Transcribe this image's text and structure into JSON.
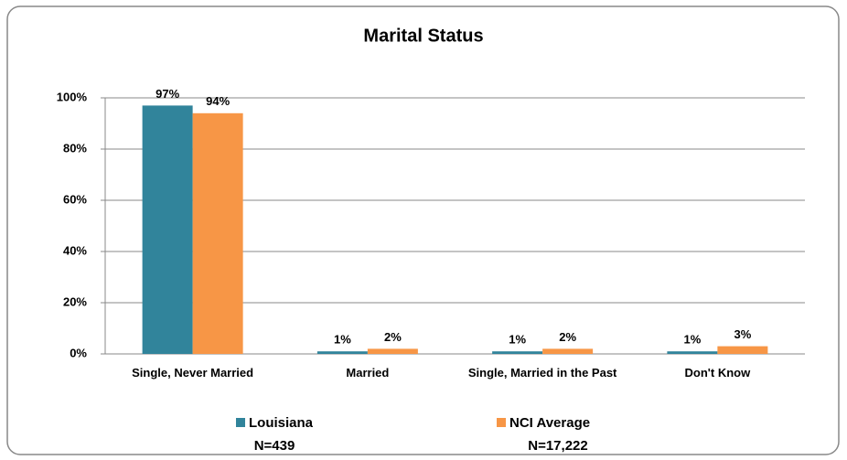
{
  "chart_data": {
    "type": "bar",
    "title": "Marital Status",
    "categories": [
      "Single, Never Married",
      "Married",
      "Single, Married in the Past",
      "Don't Know"
    ],
    "series": [
      {
        "name": "Louisiana",
        "n_label": "N=439",
        "color": "#31849b",
        "values": [
          97,
          1,
          1,
          1
        ],
        "value_labels": [
          "97%",
          "1%",
          "1%",
          "1%"
        ]
      },
      {
        "name": "NCI Average",
        "n_label": "N=17,222",
        "color": "#f79646",
        "values": [
          94,
          2,
          2,
          3
        ],
        "value_labels": [
          "94%",
          "2%",
          "2%",
          "3%"
        ]
      }
    ],
    "ylim": [
      0,
      100
    ],
    "yticks": [
      {
        "value": 0,
        "label": "0%"
      },
      {
        "value": 20,
        "label": "20%"
      },
      {
        "value": 40,
        "label": "40%"
      },
      {
        "value": 60,
        "label": "60%"
      },
      {
        "value": 80,
        "label": "80%"
      },
      {
        "value": 100,
        "label": "100%"
      }
    ],
    "grid": true,
    "legend": "bottom"
  }
}
